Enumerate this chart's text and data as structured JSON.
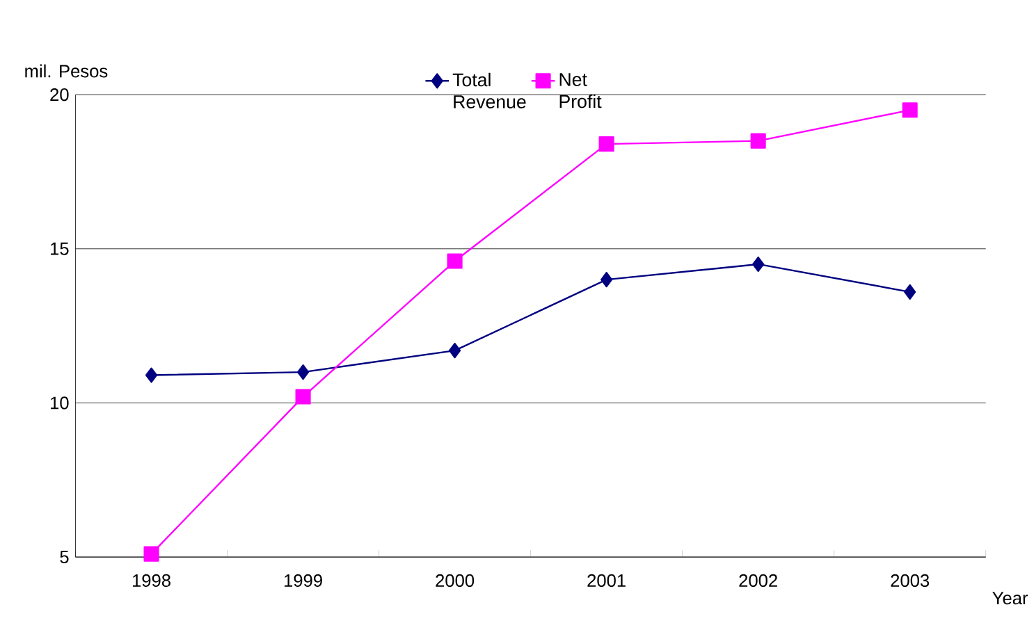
{
  "chart_data": {
    "type": "line",
    "ylabel": "mil. Pesos",
    "xlabel": "Year",
    "categories": [
      "1998",
      "1999",
      "2000",
      "2001",
      "2002",
      "2003"
    ],
    "series": [
      {
        "name": "Total Revenue",
        "color": "#000080",
        "marker": "diamond",
        "values": [
          10.9,
          11.0,
          11.7,
          14.0,
          14.5,
          13.6
        ]
      },
      {
        "name": "Net Profit",
        "color": "#ff00ff",
        "marker": "square",
        "values": [
          5.1,
          10.2,
          14.6,
          18.4,
          18.5,
          19.5
        ]
      }
    ],
    "ylim": [
      5,
      20
    ],
    "yticks": [
      5,
      10,
      15,
      20
    ],
    "grid": "y",
    "legend": "top"
  }
}
